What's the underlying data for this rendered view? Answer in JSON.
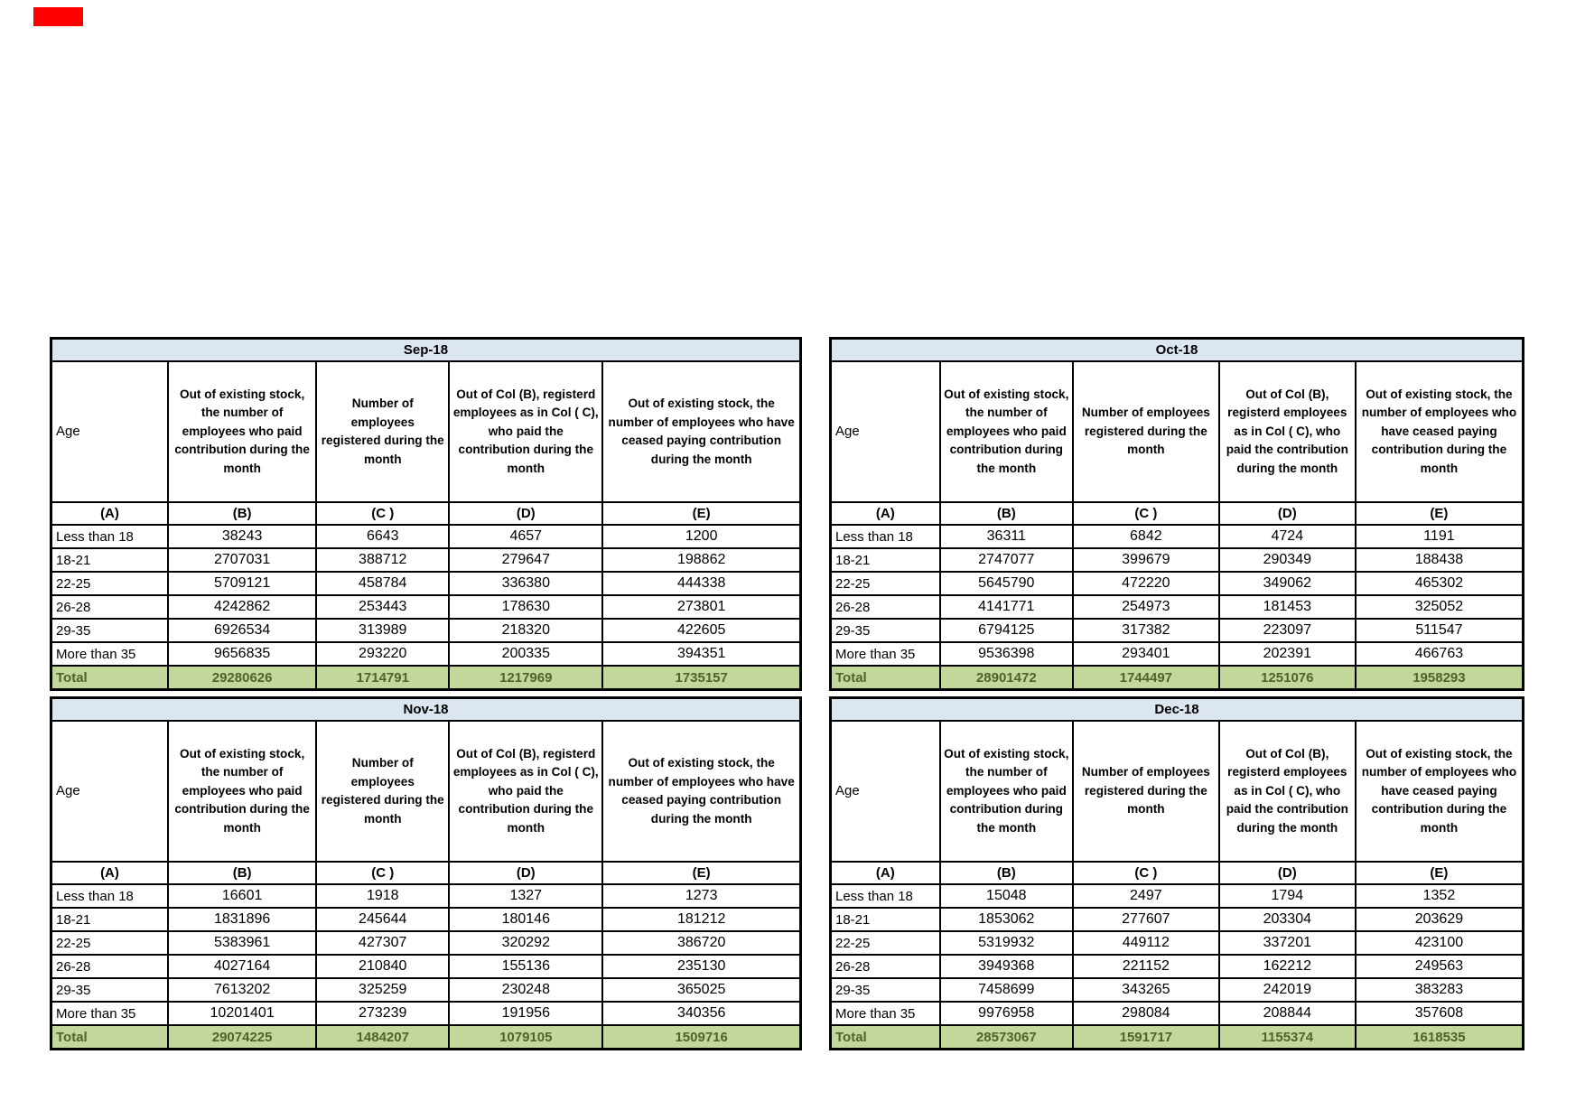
{
  "colors": {
    "title_bg": "#DCE6F1",
    "total_bg": "#C4D79B",
    "total_text": "#4F6228",
    "border": "#000000",
    "marker": "#FF0000",
    "background": "#FFFFFF"
  },
  "shared": {
    "age_header": "Age",
    "letters": [
      "(A)",
      "(B)",
      "(C )",
      "(D)",
      "(E)"
    ],
    "total_label": "Total",
    "col_b": "Out of existing stock, the number of employees who paid contribution during the month",
    "col_c": "Number of employees registered during the month",
    "col_d": "Out of Col (B), registerd employees as in Col ( C), who paid the contribution during the month",
    "col_e": "Out of existing stock, the number of  employees  who have ceased paying contribution during the month"
  },
  "tables": [
    {
      "title": "Sep-18",
      "rows": [
        [
          "Less than 18",
          38243,
          6643,
          4657,
          1200
        ],
        [
          "18-21",
          2707031,
          388712,
          279647,
          198862
        ],
        [
          "22-25",
          5709121,
          458784,
          336380,
          444338
        ],
        [
          "26-28",
          4242862,
          253443,
          178630,
          273801
        ],
        [
          "29-35",
          6926534,
          313989,
          218320,
          422605
        ],
        [
          "More than 35",
          9656835,
          293220,
          200335,
          394351
        ]
      ],
      "total": [
        "Total",
        29280626,
        1714791,
        1217969,
        1735157
      ]
    },
    {
      "title": "Oct-18",
      "rows": [
        [
          "Less than 18",
          36311,
          6842,
          4724,
          1191
        ],
        [
          "18-21",
          2747077,
          399679,
          290349,
          188438
        ],
        [
          "22-25",
          5645790,
          472220,
          349062,
          465302
        ],
        [
          "26-28",
          4141771,
          254973,
          181453,
          325052
        ],
        [
          "29-35",
          6794125,
          317382,
          223097,
          511547
        ],
        [
          "More than 35",
          9536398,
          293401,
          202391,
          466763
        ]
      ],
      "total": [
        "Total",
        28901472,
        1744497,
        1251076,
        1958293
      ]
    },
    {
      "title": "Nov-18",
      "rows": [
        [
          "Less than 18",
          16601,
          1918,
          1327,
          1273
        ],
        [
          "18-21",
          1831896,
          245644,
          180146,
          181212
        ],
        [
          "22-25",
          5383961,
          427307,
          320292,
          386720
        ],
        [
          "26-28",
          4027164,
          210840,
          155136,
          235130
        ],
        [
          "29-35",
          7613202,
          325259,
          230248,
          365025
        ],
        [
          "More than 35",
          10201401,
          273239,
          191956,
          340356
        ]
      ],
      "total": [
        "Total",
        29074225,
        1484207,
        1079105,
        1509716
      ]
    },
    {
      "title": "Dec-18",
      "rows": [
        [
          "Less than 18",
          15048,
          2497,
          1794,
          1352
        ],
        [
          "18-21",
          1853062,
          277607,
          203304,
          203629
        ],
        [
          "22-25",
          5319932,
          449112,
          337201,
          423100
        ],
        [
          "26-28",
          3949368,
          221152,
          162212,
          249563
        ],
        [
          "29-35",
          7458699,
          343265,
          242019,
          383283
        ],
        [
          "More than 35",
          9976958,
          298084,
          208844,
          357608
        ]
      ],
      "total": [
        "Total",
        28573067,
        1591717,
        1155374,
        1618535
      ]
    }
  ]
}
